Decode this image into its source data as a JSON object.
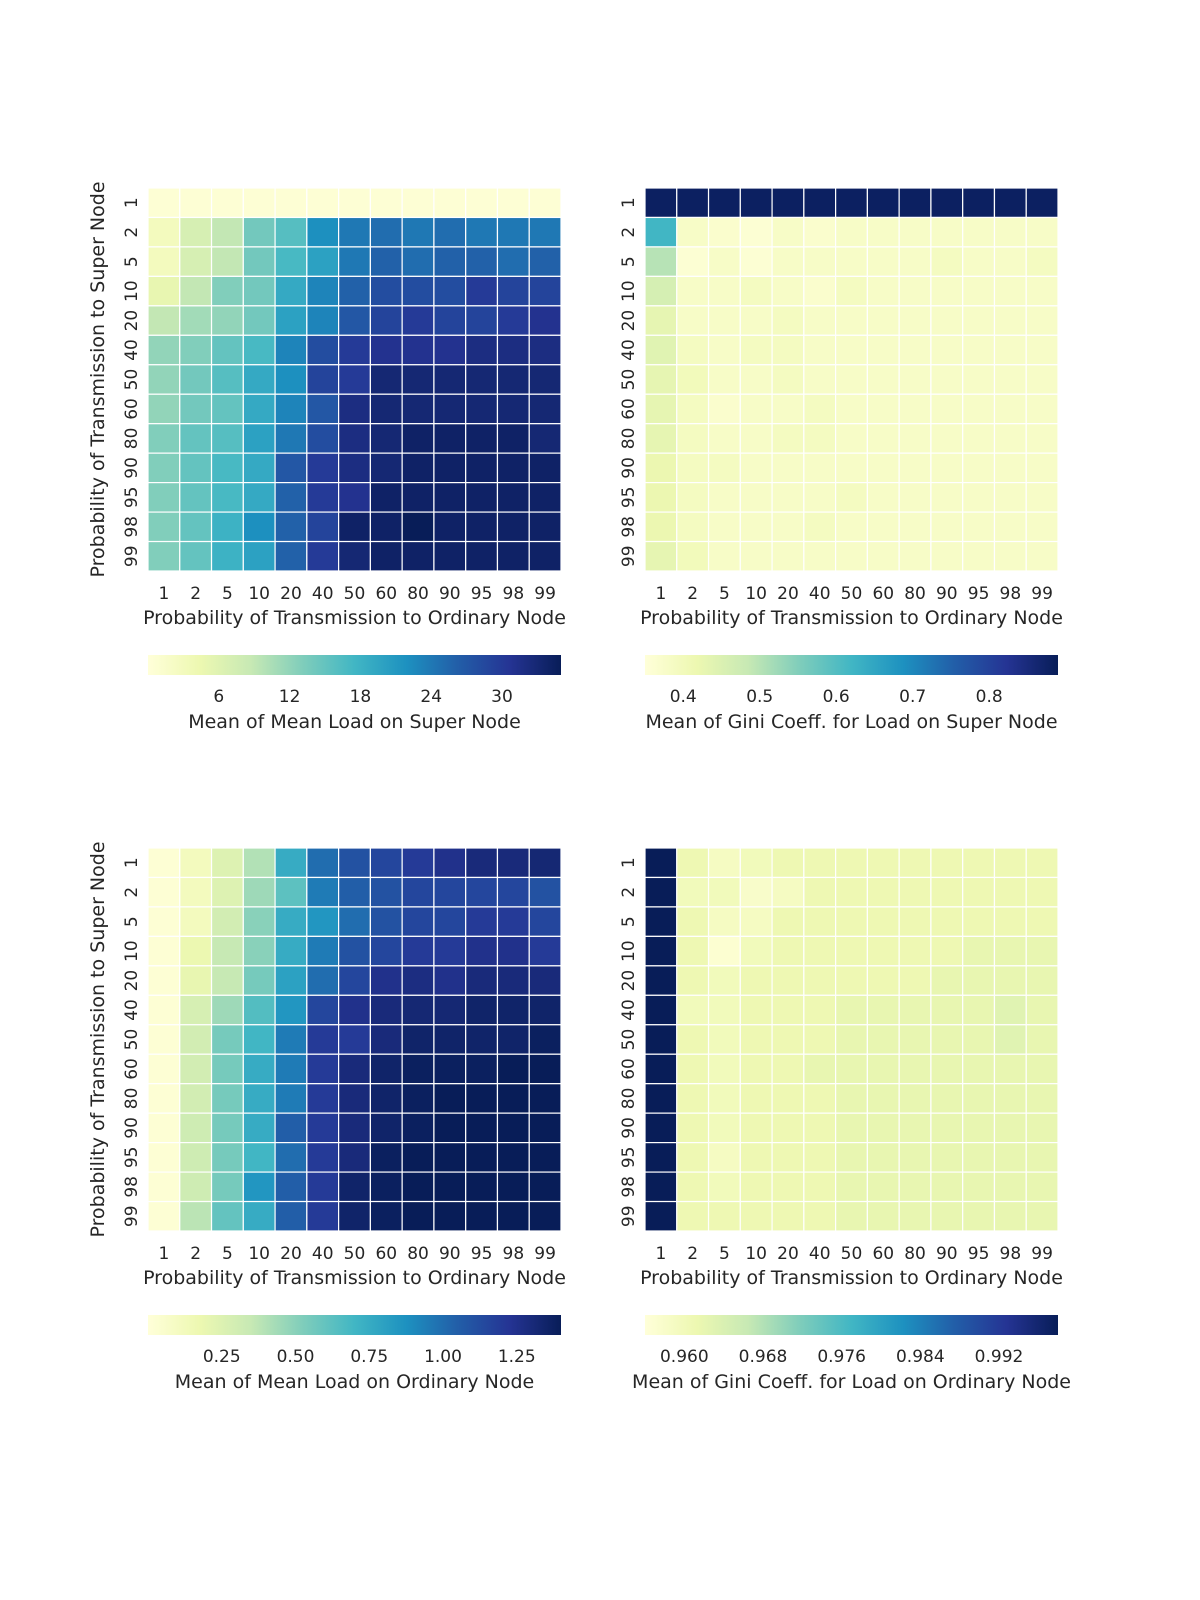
{
  "chart_data": [
    {
      "type": "heatmap",
      "panel": "top-left",
      "xlabel": "Probability of Transmission to Ordinary Node",
      "ylabel": "Probability of Transmission to Super Node",
      "x_tick_labels": [
        "1",
        "2",
        "5",
        "10",
        "20",
        "40",
        "50",
        "60",
        "80",
        "90",
        "95",
        "98",
        "99"
      ],
      "y_tick_labels": [
        "1",
        "2",
        "5",
        "10",
        "20",
        "40",
        "50",
        "60",
        "80",
        "90",
        "95",
        "98",
        "99"
      ],
      "colorbar": {
        "label": "Mean of Mean Load on Super Node",
        "min": 0,
        "max": 35,
        "tick_values": [
          6,
          12,
          18,
          24,
          30
        ],
        "tick_labels": [
          "6",
          "12",
          "18",
          "24",
          "30"
        ]
      },
      "values": [
        [
          0.5,
          0.5,
          0.5,
          0.5,
          0.5,
          0.5,
          0.5,
          0.5,
          0.5,
          0.5,
          0.5,
          0.5,
          0.5
        ],
        [
          3,
          7,
          9,
          14,
          16,
          22,
          24,
          25,
          24,
          25,
          24,
          24,
          24
        ],
        [
          3,
          7,
          9,
          14,
          17,
          20,
          24,
          26,
          25,
          26,
          26,
          25,
          26
        ],
        [
          5,
          9,
          13,
          14,
          19,
          23,
          26,
          28,
          28,
          28,
          30,
          29,
          29
        ],
        [
          9,
          11,
          12,
          14,
          20,
          23,
          27,
          29,
          30,
          29,
          29,
          30,
          31
        ],
        [
          12,
          13,
          15,
          17,
          23,
          28,
          30,
          31,
          31,
          31,
          32,
          32,
          32
        ],
        [
          12,
          14,
          16,
          19,
          22,
          29,
          30,
          33,
          33,
          33,
          33,
          33,
          33
        ],
        [
          12,
          14,
          15,
          19,
          23,
          27,
          32,
          33,
          33,
          33,
          33,
          33,
          33
        ],
        [
          13,
          15,
          16,
          20,
          24,
          28,
          32,
          33,
          34,
          34,
          34,
          34,
          33
        ],
        [
          13,
          15,
          17,
          19,
          27,
          30,
          32,
          33,
          34,
          34,
          34,
          34,
          34
        ],
        [
          13,
          15,
          17,
          19,
          26,
          30,
          31,
          34,
          34,
          34,
          34,
          34,
          34
        ],
        [
          13,
          15,
          18,
          22,
          26,
          29,
          34,
          34,
          35,
          34,
          34,
          34,
          34
        ],
        [
          13,
          15,
          18,
          20,
          26,
          30,
          33,
          34,
          34,
          34,
          34,
          34,
          34
        ]
      ]
    },
    {
      "type": "heatmap",
      "panel": "top-right",
      "xlabel": "Probability of Transmission to Ordinary Node",
      "ylabel": "",
      "x_tick_labels": [
        "1",
        "2",
        "5",
        "10",
        "20",
        "40",
        "50",
        "60",
        "80",
        "90",
        "95",
        "98",
        "99"
      ],
      "y_tick_labels": [
        "1",
        "2",
        "5",
        "10",
        "20",
        "40",
        "50",
        "60",
        "80",
        "90",
        "95",
        "98",
        "99"
      ],
      "colorbar": {
        "label": "Mean of Gini Coeff. for Load on Super Node",
        "min": 0.35,
        "max": 0.89,
        "tick_values": [
          0.4,
          0.5,
          0.6,
          0.7,
          0.8
        ],
        "tick_labels": [
          "0.4",
          "0.5",
          "0.6",
          "0.7",
          "0.8"
        ]
      },
      "values": [
        [
          0.88,
          0.88,
          0.88,
          0.88,
          0.88,
          0.88,
          0.88,
          0.88,
          0.88,
          0.88,
          0.88,
          0.88,
          0.88
        ],
        [
          0.62,
          0.38,
          0.37,
          0.36,
          0.38,
          0.37,
          0.38,
          0.38,
          0.38,
          0.38,
          0.38,
          0.38,
          0.38
        ],
        [
          0.5,
          0.36,
          0.38,
          0.36,
          0.38,
          0.38,
          0.38,
          0.38,
          0.38,
          0.39,
          0.38,
          0.38,
          0.39
        ],
        [
          0.46,
          0.38,
          0.38,
          0.39,
          0.38,
          0.37,
          0.39,
          0.38,
          0.38,
          0.38,
          0.38,
          0.38,
          0.38
        ],
        [
          0.43,
          0.38,
          0.38,
          0.38,
          0.39,
          0.38,
          0.38,
          0.38,
          0.38,
          0.38,
          0.38,
          0.38,
          0.38
        ],
        [
          0.44,
          0.39,
          0.38,
          0.39,
          0.39,
          0.38,
          0.38,
          0.38,
          0.38,
          0.38,
          0.38,
          0.38,
          0.38
        ],
        [
          0.43,
          0.4,
          0.38,
          0.38,
          0.39,
          0.38,
          0.38,
          0.38,
          0.38,
          0.38,
          0.38,
          0.38,
          0.38
        ],
        [
          0.43,
          0.39,
          0.37,
          0.38,
          0.38,
          0.39,
          0.38,
          0.38,
          0.38,
          0.38,
          0.38,
          0.38,
          0.38
        ],
        [
          0.43,
          0.39,
          0.38,
          0.38,
          0.39,
          0.39,
          0.38,
          0.38,
          0.38,
          0.38,
          0.38,
          0.38,
          0.38
        ],
        [
          0.42,
          0.39,
          0.39,
          0.38,
          0.38,
          0.38,
          0.38,
          0.38,
          0.38,
          0.38,
          0.38,
          0.38,
          0.38
        ],
        [
          0.42,
          0.39,
          0.38,
          0.38,
          0.38,
          0.38,
          0.39,
          0.38,
          0.38,
          0.38,
          0.38,
          0.38,
          0.38
        ],
        [
          0.42,
          0.39,
          0.38,
          0.38,
          0.38,
          0.39,
          0.38,
          0.38,
          0.38,
          0.38,
          0.38,
          0.38,
          0.38
        ],
        [
          0.43,
          0.4,
          0.38,
          0.38,
          0.38,
          0.38,
          0.38,
          0.38,
          0.38,
          0.38,
          0.38,
          0.38,
          0.38
        ]
      ]
    },
    {
      "type": "heatmap",
      "panel": "bottom-left",
      "xlabel": "Probability of Transmission to Ordinary Node",
      "ylabel": "Probability of Transmission to Super Node",
      "x_tick_labels": [
        "1",
        "2",
        "5",
        "10",
        "20",
        "40",
        "50",
        "60",
        "80",
        "90",
        "95",
        "98",
        "99"
      ],
      "y_tick_labels": [
        "1",
        "2",
        "5",
        "10",
        "20",
        "40",
        "50",
        "60",
        "80",
        "90",
        "95",
        "98",
        "99"
      ],
      "colorbar": {
        "label": "Mean of Mean Load on Ordinary Node",
        "min": 0.0,
        "max": 1.4,
        "tick_values": [
          0.25,
          0.5,
          0.75,
          1.0,
          1.25
        ],
        "tick_labels": [
          "0.25",
          "0.50",
          "0.75",
          "1.00",
          "1.25"
        ]
      },
      "values": [
        [
          0.02,
          0.12,
          0.25,
          0.4,
          0.75,
          1.0,
          1.1,
          1.15,
          1.2,
          1.25,
          1.3,
          1.3,
          1.32
        ],
        [
          0.02,
          0.12,
          0.25,
          0.45,
          0.62,
          0.95,
          1.05,
          1.1,
          1.15,
          1.15,
          1.15,
          1.15,
          1.1
        ],
        [
          0.02,
          0.12,
          0.3,
          0.5,
          0.75,
          0.85,
          1.0,
          1.1,
          1.15,
          1.15,
          1.2,
          1.2,
          1.15
        ],
        [
          0.02,
          0.18,
          0.35,
          0.5,
          0.75,
          0.95,
          1.1,
          1.15,
          1.2,
          1.2,
          1.25,
          1.25,
          1.2
        ],
        [
          0.02,
          0.2,
          0.35,
          0.55,
          0.8,
          1.0,
          1.15,
          1.25,
          1.28,
          1.25,
          1.3,
          1.3,
          1.3
        ],
        [
          0.02,
          0.28,
          0.45,
          0.65,
          0.85,
          1.15,
          1.25,
          1.3,
          1.32,
          1.32,
          1.35,
          1.35,
          1.35
        ],
        [
          0.02,
          0.3,
          0.55,
          0.7,
          0.95,
          1.2,
          1.2,
          1.3,
          1.35,
          1.35,
          1.35,
          1.35,
          1.38
        ],
        [
          0.02,
          0.3,
          0.55,
          0.75,
          0.95,
          1.2,
          1.3,
          1.35,
          1.38,
          1.38,
          1.38,
          1.4,
          1.4
        ],
        [
          0.02,
          0.3,
          0.55,
          0.75,
          0.95,
          1.2,
          1.3,
          1.35,
          1.38,
          1.4,
          1.4,
          1.4,
          1.4
        ],
        [
          0.02,
          0.32,
          0.55,
          0.75,
          1.05,
          1.2,
          1.3,
          1.35,
          1.38,
          1.4,
          1.4,
          1.4,
          1.4
        ],
        [
          0.02,
          0.32,
          0.55,
          0.7,
          1.0,
          1.2,
          1.3,
          1.38,
          1.4,
          1.4,
          1.4,
          1.4,
          1.4
        ],
        [
          0.02,
          0.32,
          0.55,
          0.85,
          1.05,
          1.2,
          1.35,
          1.38,
          1.4,
          1.4,
          1.4,
          1.4,
          1.4
        ],
        [
          0.02,
          0.38,
          0.6,
          0.75,
          1.05,
          1.2,
          1.35,
          1.38,
          1.4,
          1.4,
          1.4,
          1.4,
          1.4
        ]
      ]
    },
    {
      "type": "heatmap",
      "panel": "bottom-right",
      "xlabel": "Probability of Transmission to Ordinary Node",
      "ylabel": "",
      "x_tick_labels": [
        "1",
        "2",
        "5",
        "10",
        "20",
        "40",
        "50",
        "60",
        "80",
        "90",
        "95",
        "98",
        "99"
      ],
      "y_tick_labels": [
        "1",
        "2",
        "5",
        "10",
        "20",
        "40",
        "50",
        "60",
        "80",
        "90",
        "95",
        "98",
        "99"
      ],
      "colorbar": {
        "label": "Mean of Gini Coeff. for Load on Ordinary Node",
        "min": 0.956,
        "max": 0.998,
        "tick_values": [
          0.96,
          0.968,
          0.976,
          0.984,
          0.992
        ],
        "tick_labels": [
          "0.960",
          "0.968",
          "0.976",
          "0.984",
          "0.992"
        ]
      },
      "values": [
        [
          0.998,
          0.961,
          0.959,
          0.96,
          0.961,
          0.961,
          0.961,
          0.961,
          0.961,
          0.961,
          0.961,
          0.961,
          0.961
        ],
        [
          0.998,
          0.96,
          0.96,
          0.958,
          0.959,
          0.961,
          0.961,
          0.961,
          0.961,
          0.961,
          0.961,
          0.961,
          0.961
        ],
        [
          0.998,
          0.961,
          0.959,
          0.959,
          0.961,
          0.961,
          0.961,
          0.961,
          0.961,
          0.961,
          0.961,
          0.961,
          0.961
        ],
        [
          0.998,
          0.961,
          0.957,
          0.96,
          0.961,
          0.961,
          0.961,
          0.961,
          0.961,
          0.961,
          0.962,
          0.962,
          0.962
        ],
        [
          0.998,
          0.961,
          0.96,
          0.961,
          0.961,
          0.961,
          0.961,
          0.961,
          0.961,
          0.962,
          0.962,
          0.962,
          0.962
        ],
        [
          0.998,
          0.96,
          0.96,
          0.961,
          0.961,
          0.961,
          0.962,
          0.962,
          0.962,
          0.962,
          0.962,
          0.963,
          0.962
        ],
        [
          0.998,
          0.961,
          0.96,
          0.961,
          0.961,
          0.961,
          0.962,
          0.962,
          0.962,
          0.962,
          0.962,
          0.963,
          0.962
        ],
        [
          0.998,
          0.961,
          0.96,
          0.961,
          0.961,
          0.962,
          0.962,
          0.962,
          0.962,
          0.962,
          0.962,
          0.962,
          0.962
        ],
        [
          0.998,
          0.961,
          0.96,
          0.961,
          0.961,
          0.961,
          0.962,
          0.962,
          0.962,
          0.962,
          0.962,
          0.962,
          0.962
        ],
        [
          0.998,
          0.961,
          0.96,
          0.961,
          0.961,
          0.961,
          0.962,
          0.962,
          0.962,
          0.962,
          0.962,
          0.962,
          0.962
        ],
        [
          0.998,
          0.961,
          0.959,
          0.961,
          0.961,
          0.961,
          0.962,
          0.962,
          0.962,
          0.962,
          0.962,
          0.962,
          0.962
        ],
        [
          0.998,
          0.961,
          0.96,
          0.961,
          0.961,
          0.961,
          0.962,
          0.962,
          0.962,
          0.962,
          0.962,
          0.962,
          0.962
        ],
        [
          0.998,
          0.961,
          0.961,
          0.961,
          0.961,
          0.961,
          0.962,
          0.962,
          0.962,
          0.962,
          0.962,
          0.962,
          0.962
        ]
      ]
    }
  ],
  "colormap": [
    "#ffffd9",
    "#edf8b1",
    "#c7e9b4",
    "#7fcdbb",
    "#41b6c4",
    "#1d91c0",
    "#225ea8",
    "#253494",
    "#081d58"
  ]
}
